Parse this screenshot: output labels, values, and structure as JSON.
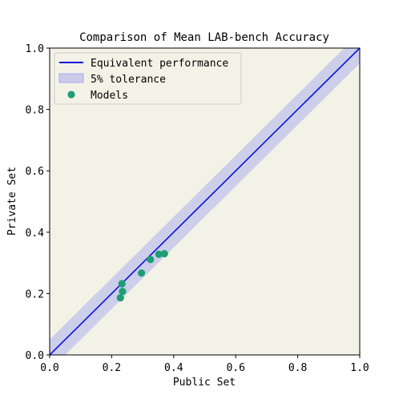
{
  "chart_data": {
    "type": "scatter",
    "title": "Comparison of Mean LAB-bench Accuracy",
    "xlabel": "Public Set",
    "ylabel": "Private Set",
    "xlim": [
      0.0,
      1.0
    ],
    "ylim": [
      0.0,
      1.0
    ],
    "xticks": [
      "0.0",
      "0.2",
      "0.4",
      "0.6",
      "0.8",
      "1.0"
    ],
    "yticks": [
      "0.0",
      "0.2",
      "0.4",
      "0.6",
      "0.8",
      "1.0"
    ],
    "grid": false,
    "legend_position": "top-left",
    "legend": [
      {
        "label": "Equivalent performance",
        "kind": "line"
      },
      {
        "label": "5% tolerance",
        "kind": "band"
      },
      {
        "label": "Models",
        "kind": "marker"
      }
    ],
    "reference_line": {
      "name": "Equivalent performance",
      "slope": 1,
      "intercept": 0
    },
    "tolerance_band": {
      "name": "5% tolerance",
      "width": 0.05
    },
    "series": [
      {
        "name": "Models",
        "points": [
          {
            "x": 0.228,
            "y": 0.186
          },
          {
            "x": 0.233,
            "y": 0.232
          },
          {
            "x": 0.235,
            "y": 0.207
          },
          {
            "x": 0.296,
            "y": 0.267
          },
          {
            "x": 0.325,
            "y": 0.311
          },
          {
            "x": 0.352,
            "y": 0.328
          },
          {
            "x": 0.37,
            "y": 0.33
          }
        ]
      }
    ],
    "colors": {
      "background": "#f3f2e6",
      "line": "#0a10d8",
      "band": "#a8a9ee",
      "marker": "#1f9e75",
      "legend_bg": "#f3f2e6"
    }
  }
}
